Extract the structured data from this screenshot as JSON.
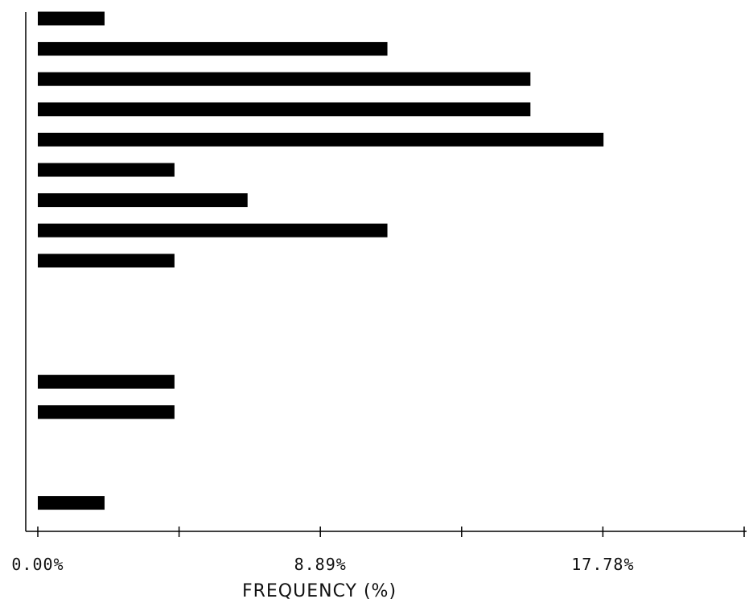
{
  "chart_data": {
    "type": "bar",
    "orientation": "horizontal",
    "xlabel": "FREQUENCY (%)",
    "xlim": [
      0,
      22.225
    ],
    "x_ticks": [
      0,
      4.445,
      8.89,
      13.335,
      17.78,
      22.225
    ],
    "x_tick_labels": [
      "0.00%",
      "",
      "8.89%",
      "",
      "17.78%",
      ""
    ],
    "slots": 17,
    "values": [
      2.1,
      11.0,
      15.5,
      15.5,
      17.8,
      4.3,
      6.6,
      11.0,
      4.3,
      null,
      null,
      null,
      4.3,
      4.3,
      null,
      null,
      2.1
    ],
    "bar_color": "#000000"
  }
}
